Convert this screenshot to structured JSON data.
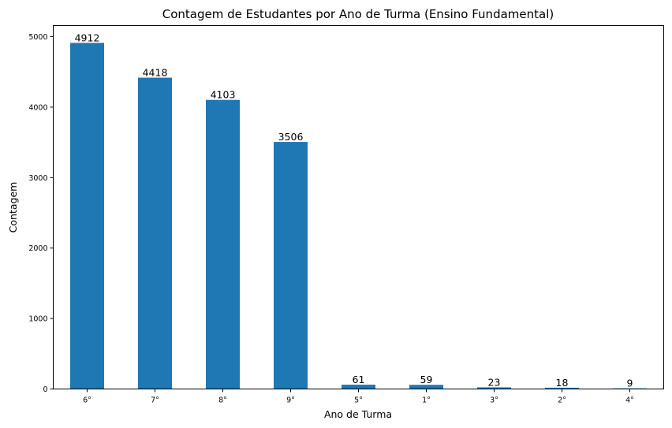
{
  "chart_data": {
    "type": "bar",
    "title": "Contagem de Estudantes por Ano de Turma (Ensino Fundamental)",
    "xlabel": "Ano de Turma",
    "ylabel": "Contagem",
    "categories": [
      "6°",
      "7°",
      "8°",
      "9°",
      "5°",
      "1°",
      "3°",
      "2°",
      "4°"
    ],
    "values": [
      4912,
      4418,
      4103,
      3506,
      61,
      59,
      23,
      18,
      9
    ],
    "data_labels": [
      "4912",
      "4418",
      "4103",
      "3506",
      "61",
      "59",
      "23",
      "18",
      "9"
    ],
    "ylim": [
      0,
      5157
    ],
    "yticks": [
      0,
      1000,
      2000,
      3000,
      4000,
      5000
    ],
    "ytick_labels": [
      "0",
      "1000",
      "2000",
      "3000",
      "4000",
      "5000"
    ],
    "bar_color": "#1f77b4",
    "grid": false,
    "legend": "none"
  }
}
